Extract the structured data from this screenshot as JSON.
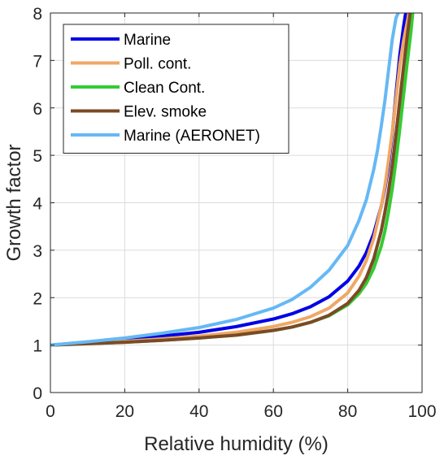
{
  "chart_data": {
    "type": "line",
    "title": "",
    "xlabel": "Relative humidity (%)",
    "ylabel": "Growth factor",
    "xlim": [
      0,
      100
    ],
    "ylim": [
      0,
      8
    ],
    "xticks": [
      0,
      20,
      40,
      60,
      80,
      100
    ],
    "yticks": [
      0,
      1,
      2,
      3,
      4,
      5,
      6,
      7,
      8
    ],
    "grid": true,
    "legend_position": "top-left",
    "series": [
      {
        "name": "Marine",
        "color": "#0000e6",
        "x": [
          0,
          10,
          20,
          30,
          40,
          50,
          60,
          65,
          70,
          75,
          80,
          83,
          85,
          87,
          89,
          90,
          91,
          92,
          93,
          94,
          95,
          95.6
        ],
        "y": [
          1.0,
          1.06,
          1.12,
          1.19,
          1.27,
          1.39,
          1.55,
          1.66,
          1.81,
          2.02,
          2.35,
          2.66,
          2.95,
          3.35,
          3.92,
          4.3,
          4.8,
          5.45,
          6.3,
          7.1,
          7.7,
          8.0
        ]
      },
      {
        "name": "Poll. cont.",
        "color": "#f0a765",
        "x": [
          0,
          10,
          20,
          30,
          40,
          50,
          60,
          65,
          70,
          75,
          80,
          83,
          85,
          87,
          89,
          90,
          91,
          92,
          93,
          94,
          95,
          96,
          96.5
        ],
        "y": [
          1.0,
          1.04,
          1.08,
          1.13,
          1.19,
          1.27,
          1.39,
          1.48,
          1.6,
          1.78,
          2.1,
          2.45,
          2.78,
          3.25,
          3.92,
          4.35,
          4.9,
          5.5,
          6.2,
          6.9,
          7.4,
          7.8,
          8.0
        ]
      },
      {
        "name": "Clean Cont.",
        "color": "#33cc33",
        "x": [
          0,
          10,
          20,
          30,
          40,
          50,
          60,
          65,
          70,
          75,
          80,
          83,
          85,
          87,
          89,
          90,
          91,
          92,
          93,
          94,
          95,
          96,
          97,
          97.5
        ],
        "y": [
          1.0,
          1.03,
          1.06,
          1.1,
          1.15,
          1.21,
          1.31,
          1.38,
          1.48,
          1.62,
          1.85,
          2.08,
          2.3,
          2.62,
          3.08,
          3.4,
          3.82,
          4.3,
          4.9,
          5.55,
          6.25,
          6.95,
          7.6,
          8.0
        ]
      },
      {
        "name": "Elev. smoke",
        "color": "#7b4a26",
        "x": [
          0,
          10,
          20,
          30,
          40,
          50,
          60,
          65,
          70,
          75,
          80,
          83,
          85,
          87,
          89,
          90,
          91,
          92,
          93,
          94,
          95,
          96,
          96.8
        ],
        "y": [
          1.0,
          1.03,
          1.06,
          1.1,
          1.15,
          1.21,
          1.31,
          1.38,
          1.48,
          1.63,
          1.88,
          2.15,
          2.42,
          2.82,
          3.4,
          3.8,
          4.25,
          4.8,
          5.45,
          6.15,
          6.85,
          7.5,
          8.0
        ]
      },
      {
        "name": "Marine (AERONET)",
        "color": "#66b8f5",
        "x": [
          0,
          10,
          20,
          30,
          40,
          50,
          60,
          65,
          70,
          75,
          80,
          83,
          85,
          87,
          88,
          89,
          90,
          91,
          92,
          93,
          93.6
        ],
        "y": [
          1.0,
          1.07,
          1.15,
          1.25,
          1.37,
          1.54,
          1.78,
          1.96,
          2.22,
          2.58,
          3.1,
          3.62,
          4.06,
          4.7,
          5.1,
          5.6,
          6.15,
          6.8,
          7.45,
          7.9,
          8.0
        ]
      }
    ]
  }
}
